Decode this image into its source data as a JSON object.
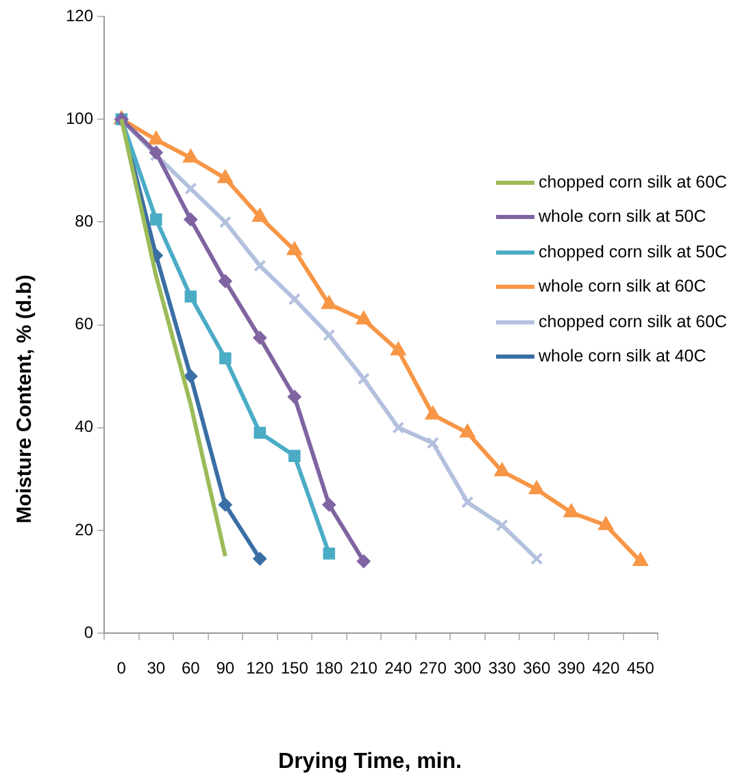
{
  "chart_data": {
    "type": "line",
    "xlabel": "Drying Time, min.",
    "ylabel": "Moisture Content, % (d.b)",
    "categories": [
      "0",
      "30",
      "60",
      "90",
      "120",
      "150",
      "180",
      "210",
      "240",
      "270",
      "300",
      "330",
      "360",
      "390",
      "420",
      "450"
    ],
    "ylim": [
      0,
      120
    ],
    "yticks": [
      0,
      20,
      40,
      60,
      80,
      100,
      120
    ],
    "grid": false,
    "legend": "top right",
    "series": [
      {
        "name": "chopped corn silk at 60C",
        "color": "#9bbb59",
        "marker": "none",
        "values": [
          100,
          69.5,
          44.5,
          15,
          null,
          null,
          null,
          null,
          null,
          null,
          null,
          null,
          null,
          null,
          null,
          null
        ]
      },
      {
        "name": "whole corn silk at 50C",
        "color": "#8064a2",
        "marker": "diamond",
        "values": [
          100,
          93.5,
          80.5,
          68.5,
          57.5,
          46,
          25,
          14,
          null,
          null,
          null,
          null,
          null,
          null,
          null,
          null
        ]
      },
      {
        "name": "chopped corn silk at 50C",
        "color": "#4bacc6",
        "marker": "square",
        "values": [
          100,
          80.5,
          65.5,
          53.5,
          39,
          34.5,
          15.5,
          null,
          null,
          null,
          null,
          null,
          null,
          null,
          null,
          null
        ]
      },
      {
        "name": "whole corn silk at 60C",
        "color": "#f79646",
        "marker": "triangle",
        "values": [
          100,
          96,
          92.5,
          88.5,
          81,
          74.5,
          64,
          61,
          55,
          42.5,
          39,
          31.5,
          28,
          23.5,
          21,
          14
        ]
      },
      {
        "name": "chopped corn silk at 60C",
        "color": "#b3c0de",
        "marker": "cross",
        "values": [
          100,
          93,
          86.5,
          80,
          71.5,
          65,
          58,
          49.5,
          40,
          37,
          25.5,
          21,
          14.5,
          null,
          null,
          null
        ]
      },
      {
        "name": "whole corn silk at 40C",
        "color": "#3a6ea5",
        "marker": "diamond",
        "values": [
          100,
          73.5,
          50,
          25,
          14.5,
          null,
          null,
          null,
          null,
          null,
          null,
          null,
          null,
          null,
          null,
          null
        ]
      }
    ]
  }
}
